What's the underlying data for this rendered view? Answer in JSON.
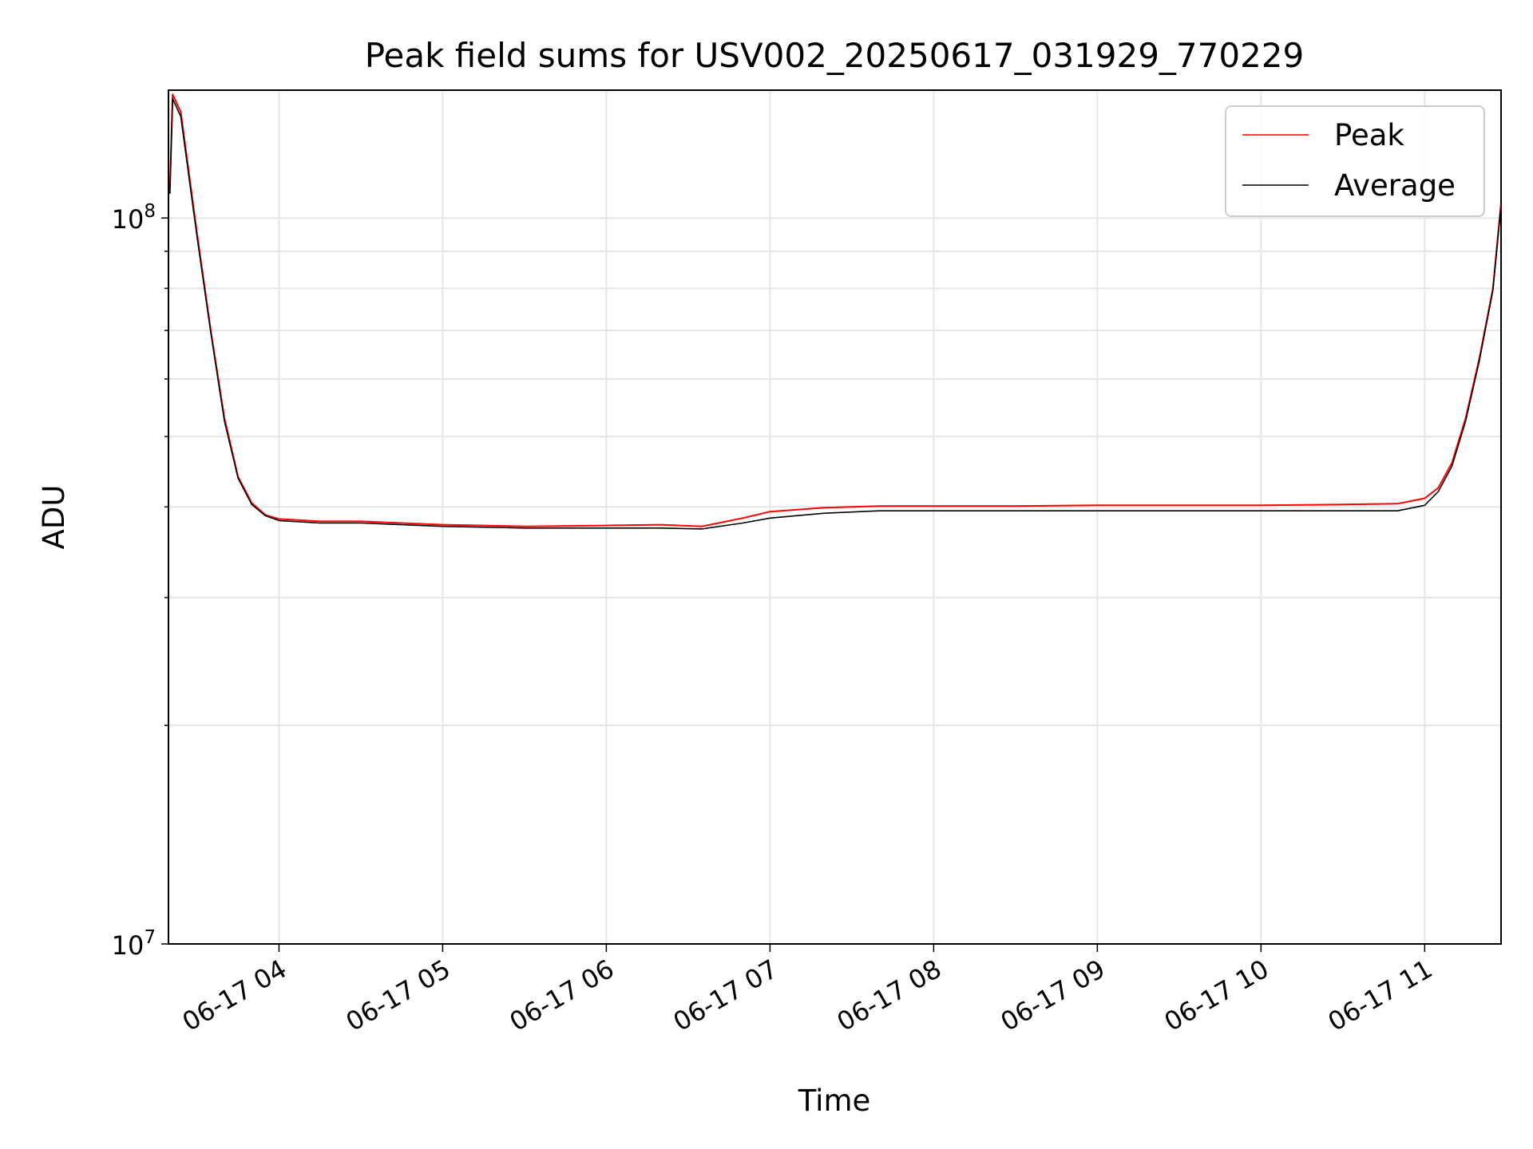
{
  "chart_data": {
    "type": "line",
    "title": "Peak field sums for USV002_20250617_031929_770229",
    "xlabel": "Time",
    "ylabel": "ADU",
    "yscale": "log",
    "ylim": [
      10000000,
      150000000
    ],
    "xlim": [
      "2025-06-17 03:19:29",
      "2025-06-17 11:28:00"
    ],
    "grid": true,
    "legend_position": "top-right",
    "x_tick_labels": [
      "06-17 04",
      "06-17 05",
      "06-17 06",
      "06-17 07",
      "06-17 08",
      "06-17 09",
      "06-17 10",
      "06-17 11"
    ],
    "y_tick_labels": [
      {
        "value": 10000000,
        "base": "10",
        "exp": "7"
      },
      {
        "value": 100000000,
        "base": "10",
        "exp": "8"
      }
    ],
    "series": [
      {
        "name": "Peak",
        "color": "#ff0000",
        "x": [
          "2025-06-17 03:20",
          "2025-06-17 03:21",
          "2025-06-17 03:24",
          "2025-06-17 03:30",
          "2025-06-17 03:35",
          "2025-06-17 03:40",
          "2025-06-17 03:45",
          "2025-06-17 03:50",
          "2025-06-17 03:55",
          "2025-06-17 04:00",
          "2025-06-17 04:15",
          "2025-06-17 04:30",
          "2025-06-17 05:00",
          "2025-06-17 05:30",
          "2025-06-17 06:00",
          "2025-06-17 06:20",
          "2025-06-17 06:35",
          "2025-06-17 06:50",
          "2025-06-17 07:00",
          "2025-06-17 07:20",
          "2025-06-17 07:40",
          "2025-06-17 08:00",
          "2025-06-17 08:30",
          "2025-06-17 09:00",
          "2025-06-17 09:30",
          "2025-06-17 10:00",
          "2025-06-17 10:30",
          "2025-06-17 10:50",
          "2025-06-17 11:00",
          "2025-06-17 11:05",
          "2025-06-17 11:10",
          "2025-06-17 11:15",
          "2025-06-17 11:20",
          "2025-06-17 11:25",
          "2025-06-17 11:28"
        ],
        "y": [
          110000000,
          148000000,
          140000000,
          95000000,
          70000000,
          53000000,
          44000000,
          40500000,
          39000000,
          38500000,
          38200000,
          38200000,
          37800000,
          37600000,
          37700000,
          37800000,
          37600000,
          38600000,
          39400000,
          39900000,
          40100000,
          40100000,
          40100000,
          40200000,
          40200000,
          40200000,
          40300000,
          40400000,
          41100000,
          42500000,
          46000000,
          53000000,
          64000000,
          80000000,
          105000000
        ]
      },
      {
        "name": "Average",
        "color": "#000000",
        "x": [
          "2025-06-17 03:20",
          "2025-06-17 03:21",
          "2025-06-17 03:24",
          "2025-06-17 03:30",
          "2025-06-17 03:35",
          "2025-06-17 03:40",
          "2025-06-17 03:45",
          "2025-06-17 03:50",
          "2025-06-17 03:55",
          "2025-06-17 04:00",
          "2025-06-17 04:15",
          "2025-06-17 04:30",
          "2025-06-17 05:00",
          "2025-06-17 05:30",
          "2025-06-17 06:00",
          "2025-06-17 06:20",
          "2025-06-17 06:35",
          "2025-06-17 06:50",
          "2025-06-17 07:00",
          "2025-06-17 07:20",
          "2025-06-17 07:40",
          "2025-06-17 08:00",
          "2025-06-17 08:30",
          "2025-06-17 09:00",
          "2025-06-17 09:30",
          "2025-06-17 10:00",
          "2025-06-17 10:30",
          "2025-06-17 10:50",
          "2025-06-17 11:00",
          "2025-06-17 11:05",
          "2025-06-17 11:10",
          "2025-06-17 11:15",
          "2025-06-17 11:20",
          "2025-06-17 11:25",
          "2025-06-17 11:28"
        ],
        "y": [
          108000000,
          146000000,
          138000000,
          94000000,
          69500000,
          52500000,
          43800000,
          40300000,
          38900000,
          38300000,
          38000000,
          38000000,
          37600000,
          37400000,
          37400000,
          37400000,
          37300000,
          38000000,
          38600000,
          39200000,
          39500000,
          39500000,
          39500000,
          39500000,
          39500000,
          39500000,
          39500000,
          39500000,
          40200000,
          42000000,
          45500000,
          52500000,
          63500000,
          79500000,
          104000000
        ]
      }
    ]
  }
}
